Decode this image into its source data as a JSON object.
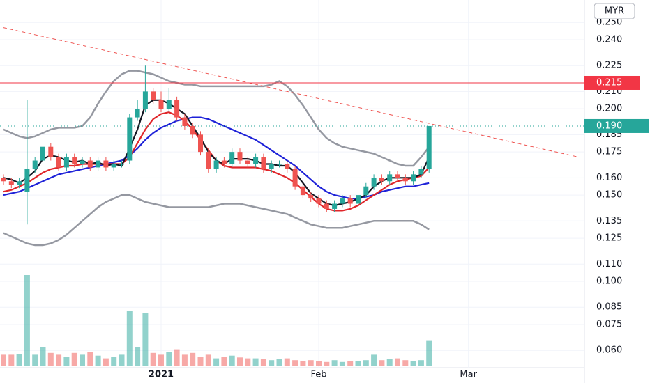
{
  "chart_data": {
    "type": "candlestick",
    "currency": "MYR",
    "categories": [
      null,
      null,
      null,
      null,
      null,
      null,
      null,
      null,
      null,
      null,
      null,
      null,
      null,
      null,
      null,
      null,
      null,
      null,
      null,
      null,
      "2021",
      null,
      null,
      null,
      null,
      null,
      null,
      null,
      null,
      null,
      null,
      null,
      null,
      null,
      null,
      null,
      null,
      null,
      null,
      null,
      "Feb",
      null,
      null,
      null,
      null,
      null,
      null,
      null,
      null,
      null,
      null,
      null,
      null,
      null,
      null,
      null,
      null,
      null,
      null,
      "Mar",
      null,
      null,
      null,
      null,
      null,
      null,
      null,
      null,
      null,
      null,
      null,
      null,
      null,
      null
    ],
    "open": [
      0.16,
      0.158,
      0.156,
      0.152,
      0.165,
      0.17,
      0.178,
      0.172,
      0.166,
      0.172,
      0.168,
      0.17,
      0.166,
      0.17,
      0.166,
      0.168,
      0.17,
      0.195,
      0.2,
      0.21,
      0.205,
      0.2,
      0.205,
      0.195,
      0.19,
      0.185,
      0.175,
      0.165,
      0.17,
      0.168,
      0.175,
      0.17,
      0.168,
      0.172,
      0.165,
      0.168,
      0.168,
      0.165,
      0.155,
      0.15,
      0.148,
      0.145,
      0.142,
      0.145,
      0.148,
      0.145,
      0.15,
      0.155,
      0.16,
      0.158,
      0.162,
      0.16,
      0.158,
      0.162,
      0.165,
      null,
      null,
      null,
      null,
      null,
      null,
      null,
      null,
      null,
      null,
      null,
      null,
      null,
      null,
      null,
      null,
      null,
      null,
      null
    ],
    "high": [
      0.162,
      0.16,
      0.16,
      0.205,
      0.172,
      0.185,
      0.18,
      0.174,
      0.174,
      0.174,
      0.172,
      0.172,
      0.172,
      0.172,
      0.17,
      0.17,
      0.197,
      0.205,
      0.225,
      0.212,
      0.21,
      0.212,
      0.207,
      0.197,
      0.192,
      0.187,
      0.177,
      0.172,
      0.172,
      0.177,
      0.177,
      0.172,
      0.174,
      0.174,
      0.17,
      0.17,
      0.17,
      0.167,
      0.157,
      0.152,
      0.15,
      0.147,
      0.147,
      0.15,
      0.15,
      0.152,
      0.157,
      0.162,
      0.162,
      0.164,
      0.164,
      0.162,
      0.164,
      0.167,
      0.19,
      null,
      null,
      null,
      null,
      null,
      null,
      null,
      null,
      null,
      null,
      null,
      null,
      null,
      null,
      null,
      null,
      null,
      null,
      null
    ],
    "low": [
      0.156,
      0.154,
      0.154,
      0.133,
      0.163,
      0.168,
      0.17,
      0.164,
      0.164,
      0.166,
      0.166,
      0.164,
      0.164,
      0.164,
      0.164,
      0.166,
      0.168,
      0.193,
      0.198,
      0.203,
      0.198,
      0.198,
      0.193,
      0.188,
      0.183,
      0.173,
      0.163,
      0.163,
      0.166,
      0.166,
      0.168,
      0.166,
      0.166,
      0.163,
      0.163,
      0.166,
      0.163,
      0.153,
      0.148,
      0.146,
      0.143,
      0.14,
      0.14,
      0.143,
      0.143,
      0.143,
      0.148,
      0.153,
      0.156,
      0.156,
      0.158,
      0.156,
      0.156,
      0.16,
      0.163,
      null,
      null,
      null,
      null,
      null,
      null,
      null,
      null,
      null,
      null,
      null,
      null,
      null,
      null,
      null,
      null,
      null,
      null,
      null
    ],
    "close": [
      0.158,
      0.156,
      0.158,
      0.165,
      0.17,
      0.178,
      0.172,
      0.166,
      0.172,
      0.168,
      0.17,
      0.166,
      0.17,
      0.166,
      0.168,
      0.168,
      0.195,
      0.2,
      0.21,
      0.205,
      0.2,
      0.205,
      0.195,
      0.19,
      0.185,
      0.175,
      0.165,
      0.17,
      0.168,
      0.175,
      0.17,
      0.168,
      0.172,
      0.165,
      0.168,
      0.168,
      0.165,
      0.155,
      0.15,
      0.148,
      0.145,
      0.142,
      0.145,
      0.148,
      0.145,
      0.15,
      0.155,
      0.16,
      0.158,
      0.162,
      0.16,
      0.158,
      0.162,
      0.165,
      0.19,
      null,
      null,
      null,
      null,
      null,
      null,
      null,
      null,
      null,
      null,
      null,
      null,
      null,
      null,
      null,
      null,
      null,
      null,
      null
    ],
    "volume": [
      12,
      12,
      13,
      100,
      12,
      20,
      14,
      12,
      10,
      14,
      12,
      15,
      11,
      8,
      10,
      12,
      60,
      20,
      58,
      14,
      12,
      15,
      18,
      12,
      14,
      10,
      12,
      8,
      10,
      11,
      9,
      8,
      8,
      7,
      6,
      7,
      8,
      6,
      5,
      6,
      5,
      4,
      6,
      4,
      5,
      5,
      6,
      12,
      6,
      7,
      8,
      6,
      5,
      6,
      28,
      null,
      null,
      null,
      null,
      null,
      null,
      null,
      null,
      null,
      null,
      null,
      null,
      null,
      null,
      null,
      null,
      null,
      null,
      null
    ],
    "up_color": "#26a69a",
    "down_color": "#ef5350",
    "lines": [
      {
        "color": "#9598a1",
        "values": [
          0.188,
          0.186,
          0.184,
          0.183,
          0.184,
          0.186,
          0.188,
          0.189,
          0.189,
          0.189,
          0.19,
          0.195,
          0.203,
          0.21,
          0.216,
          0.22,
          0.222,
          0.222,
          0.221,
          0.22,
          0.218,
          0.216,
          0.215,
          0.214,
          0.214,
          0.213,
          0.213,
          0.213,
          0.213,
          0.213,
          0.213,
          0.213,
          0.213,
          0.213,
          0.214,
          0.216,
          0.213,
          0.208,
          0.202,
          0.195,
          0.188,
          0.183,
          0.18,
          0.178,
          0.177,
          0.176,
          0.175,
          0.174,
          0.172,
          0.17,
          0.168,
          0.167,
          0.167,
          0.172,
          0.178,
          null,
          null,
          null,
          null,
          null,
          null,
          null,
          null,
          null,
          null,
          null,
          null,
          null,
          null,
          null,
          null,
          null,
          null,
          null
        ]
      },
      {
        "color": "#9598a1",
        "values": [
          0.128,
          0.126,
          0.124,
          0.122,
          0.121,
          0.121,
          0.122,
          0.124,
          0.127,
          0.131,
          0.135,
          0.139,
          0.143,
          0.146,
          0.148,
          0.15,
          0.15,
          0.148,
          0.146,
          0.145,
          0.144,
          0.143,
          0.143,
          0.143,
          0.143,
          0.143,
          0.143,
          0.144,
          0.145,
          0.145,
          0.145,
          0.144,
          0.143,
          0.142,
          0.141,
          0.14,
          0.139,
          0.137,
          0.135,
          0.133,
          0.132,
          0.131,
          0.131,
          0.131,
          0.132,
          0.133,
          0.134,
          0.135,
          0.135,
          0.135,
          0.135,
          0.135,
          0.135,
          0.133,
          0.13,
          null,
          null,
          null,
          null,
          null,
          null,
          null,
          null,
          null,
          null,
          null,
          null,
          null,
          null,
          null,
          null,
          null,
          null,
          null
        ]
      },
      {
        "color": "#1e22d8",
        "values": [
          0.15,
          0.151,
          0.152,
          0.154,
          0.156,
          0.158,
          0.16,
          0.162,
          0.163,
          0.164,
          0.165,
          0.166,
          0.167,
          0.168,
          0.169,
          0.17,
          0.173,
          0.177,
          0.182,
          0.186,
          0.189,
          0.191,
          0.193,
          0.194,
          0.195,
          0.195,
          0.194,
          0.192,
          0.19,
          0.188,
          0.186,
          0.184,
          0.182,
          0.179,
          0.176,
          0.173,
          0.17,
          0.167,
          0.163,
          0.159,
          0.155,
          0.152,
          0.15,
          0.149,
          0.148,
          0.148,
          0.149,
          0.15,
          0.152,
          0.153,
          0.154,
          0.155,
          0.155,
          0.156,
          0.157,
          null,
          null,
          null,
          null,
          null,
          null,
          null,
          null,
          null,
          null,
          null,
          null,
          null,
          null,
          null,
          null,
          null,
          null,
          null
        ]
      },
      {
        "color": "#e0262a",
        "values": [
          0.152,
          0.153,
          0.155,
          0.157,
          0.16,
          0.163,
          0.165,
          0.166,
          0.167,
          0.167,
          0.168,
          0.168,
          0.168,
          0.168,
          0.168,
          0.168,
          0.172,
          0.18,
          0.188,
          0.194,
          0.197,
          0.198,
          0.196,
          0.193,
          0.188,
          0.182,
          0.176,
          0.17,
          0.167,
          0.166,
          0.166,
          0.166,
          0.166,
          0.165,
          0.164,
          0.162,
          0.16,
          0.157,
          0.153,
          0.149,
          0.145,
          0.142,
          0.141,
          0.141,
          0.142,
          0.144,
          0.147,
          0.15,
          0.153,
          0.156,
          0.158,
          0.159,
          0.16,
          0.161,
          0.166,
          null,
          null,
          null,
          null,
          null,
          null,
          null,
          null,
          null,
          null,
          null,
          null,
          null,
          null,
          null,
          null,
          null,
          null,
          null
        ]
      },
      {
        "color": "#131722",
        "values": [
          0.16,
          0.159,
          0.157,
          0.16,
          0.164,
          0.171,
          0.173,
          0.172,
          0.17,
          0.169,
          0.17,
          0.168,
          0.169,
          0.167,
          0.168,
          0.167,
          0.177,
          0.188,
          0.202,
          0.205,
          0.205,
          0.203,
          0.2,
          0.197,
          0.19,
          0.183,
          0.175,
          0.17,
          0.168,
          0.171,
          0.171,
          0.171,
          0.17,
          0.168,
          0.168,
          0.167,
          0.167,
          0.163,
          0.157,
          0.151,
          0.148,
          0.145,
          0.144,
          0.145,
          0.146,
          0.148,
          0.15,
          0.155,
          0.158,
          0.16,
          0.16,
          0.16,
          0.16,
          0.162,
          0.172,
          null,
          null,
          null,
          null,
          null,
          null,
          null,
          null,
          null,
          null,
          null,
          null,
          null,
          null,
          null,
          null,
          null,
          null,
          null
        ]
      }
    ],
    "trendline": {
      "color": "#ef5350",
      "values": [
        0.247,
        0.172
      ]
    },
    "horizontal_line": {
      "value": 0.215,
      "label": "0.215",
      "color": "#f23645"
    },
    "last_price": {
      "value": 0.19,
      "label": "0.190",
      "color": "#26a69a"
    },
    "ylim": [
      0.05,
      0.263
    ],
    "yticks": [
      {
        "value": 0.25,
        "label": "0.250"
      },
      {
        "value": 0.24,
        "label": "0.240"
      },
      0.225,
      {
        "value": 0.21,
        "label": "0.210"
      },
      {
        "value": 0.2,
        "label": "0.200"
      },
      0.185,
      0.175,
      {
        "value": 0.16,
        "label": "0.160"
      },
      {
        "value": 0.15,
        "label": "0.150"
      },
      0.135,
      0.125,
      {
        "value": 0.11,
        "label": "0.110"
      },
      {
        "value": 0.1,
        "label": "0.100"
      },
      0.085,
      0.075,
      {
        "value": 0.06,
        "label": "0.060"
      }
    ],
    "grid": true
  }
}
